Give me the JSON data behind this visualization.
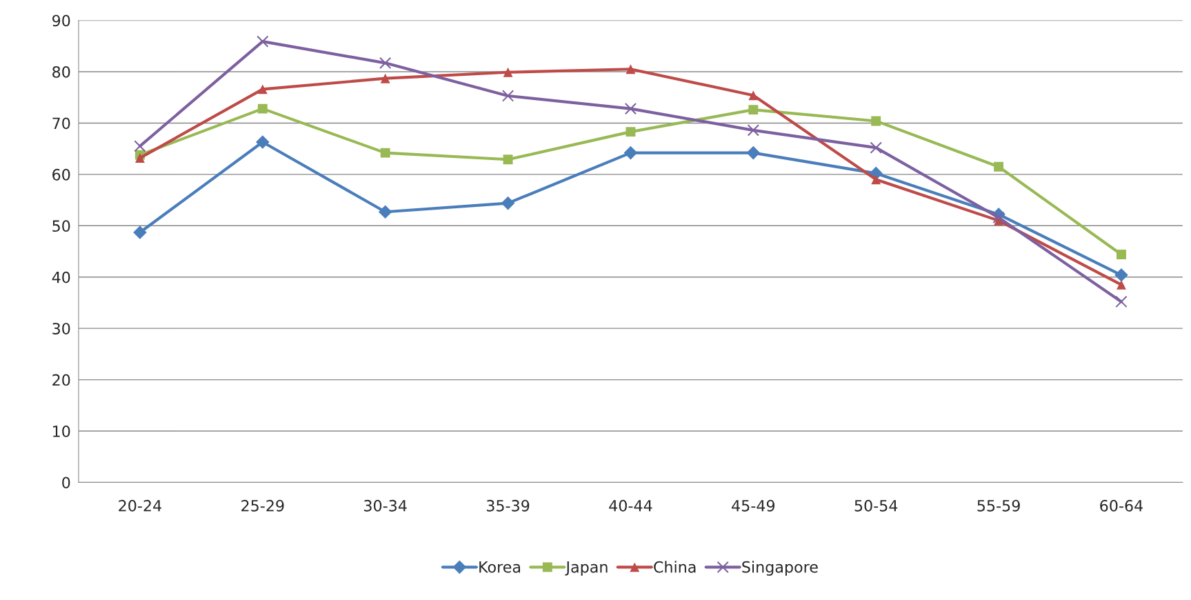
{
  "chart_data": {
    "type": "line",
    "categories": [
      "20-24",
      "25-29",
      "30-34",
      "35-39",
      "40-44",
      "45-49",
      "50-54",
      "55-59",
      "60-64"
    ],
    "series": [
      {
        "name": "Korea",
        "color": "#4a7ebb",
        "marker": "diamond",
        "values": [
          48.7,
          66.3,
          52.7,
          54.4,
          64.2,
          64.2,
          60.2,
          52.2,
          40.4
        ]
      },
      {
        "name": "Japan",
        "color": "#98b954",
        "marker": "square",
        "values": [
          63.8,
          72.8,
          64.2,
          62.9,
          68.3,
          72.6,
          70.4,
          61.5,
          44.4
        ]
      },
      {
        "name": "China",
        "color": "#be4b48",
        "marker": "triangle",
        "values": [
          63.2,
          76.6,
          78.7,
          79.9,
          80.5,
          75.4,
          59.0,
          51.0,
          38.5
        ]
      },
      {
        "name": "Singapore",
        "color": "#7d60a0",
        "marker": "cross",
        "values": [
          65.5,
          85.9,
          81.7,
          75.3,
          72.8,
          68.6,
          65.2,
          51.6,
          35.2
        ]
      }
    ],
    "ylim": [
      0,
      90
    ],
    "yticks": [
      0,
      10,
      20,
      30,
      40,
      50,
      60,
      70,
      80,
      90
    ],
    "grid": "y",
    "legend": "bottom",
    "line_style": "solid"
  }
}
